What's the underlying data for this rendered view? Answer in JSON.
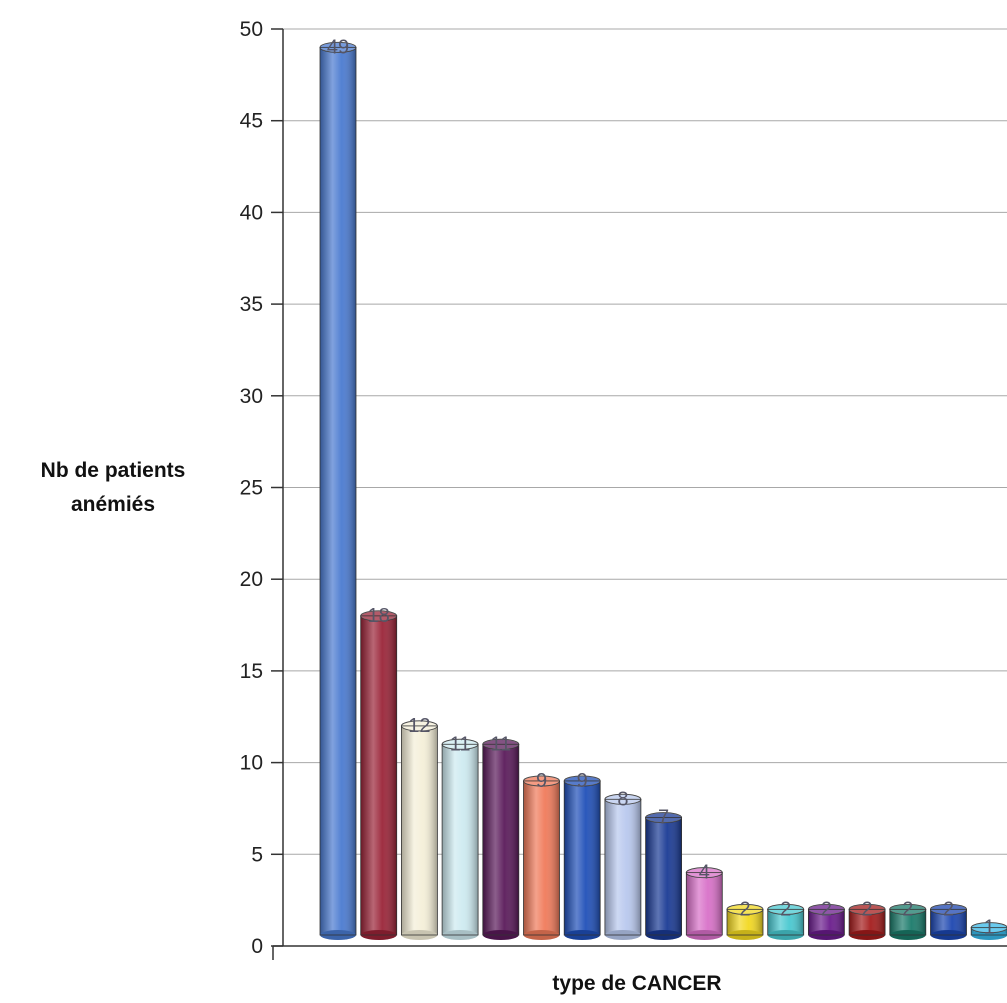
{
  "chart_data": {
    "type": "bar",
    "style": "3d-cylinder",
    "xlabel": "type de CANCER",
    "ylabel_line1": "Nb de patients",
    "ylabel_line2": "anémiés",
    "ylim": [
      0,
      50
    ],
    "y_ticks": [
      0,
      5,
      10,
      15,
      20,
      25,
      30,
      35,
      40,
      45,
      50
    ],
    "grid": true,
    "values": [
      49,
      18,
      12,
      11,
      11,
      9,
      9,
      8,
      7,
      4,
      2,
      2,
      2,
      2,
      2,
      2,
      1
    ],
    "colors": [
      "#4a7ad0",
      "#9a2438",
      "#f4efd8",
      "#cdeaf0",
      "#5a1a5a",
      "#f07a5a",
      "#1f4fb8",
      "#b8c8ee",
      "#1a3a94",
      "#d870c8",
      "#f2d820",
      "#48c8d0",
      "#6a1c8c",
      "#a41c1c",
      "#1a7a6a",
      "#1c46b0",
      "#38b8e8"
    ]
  }
}
